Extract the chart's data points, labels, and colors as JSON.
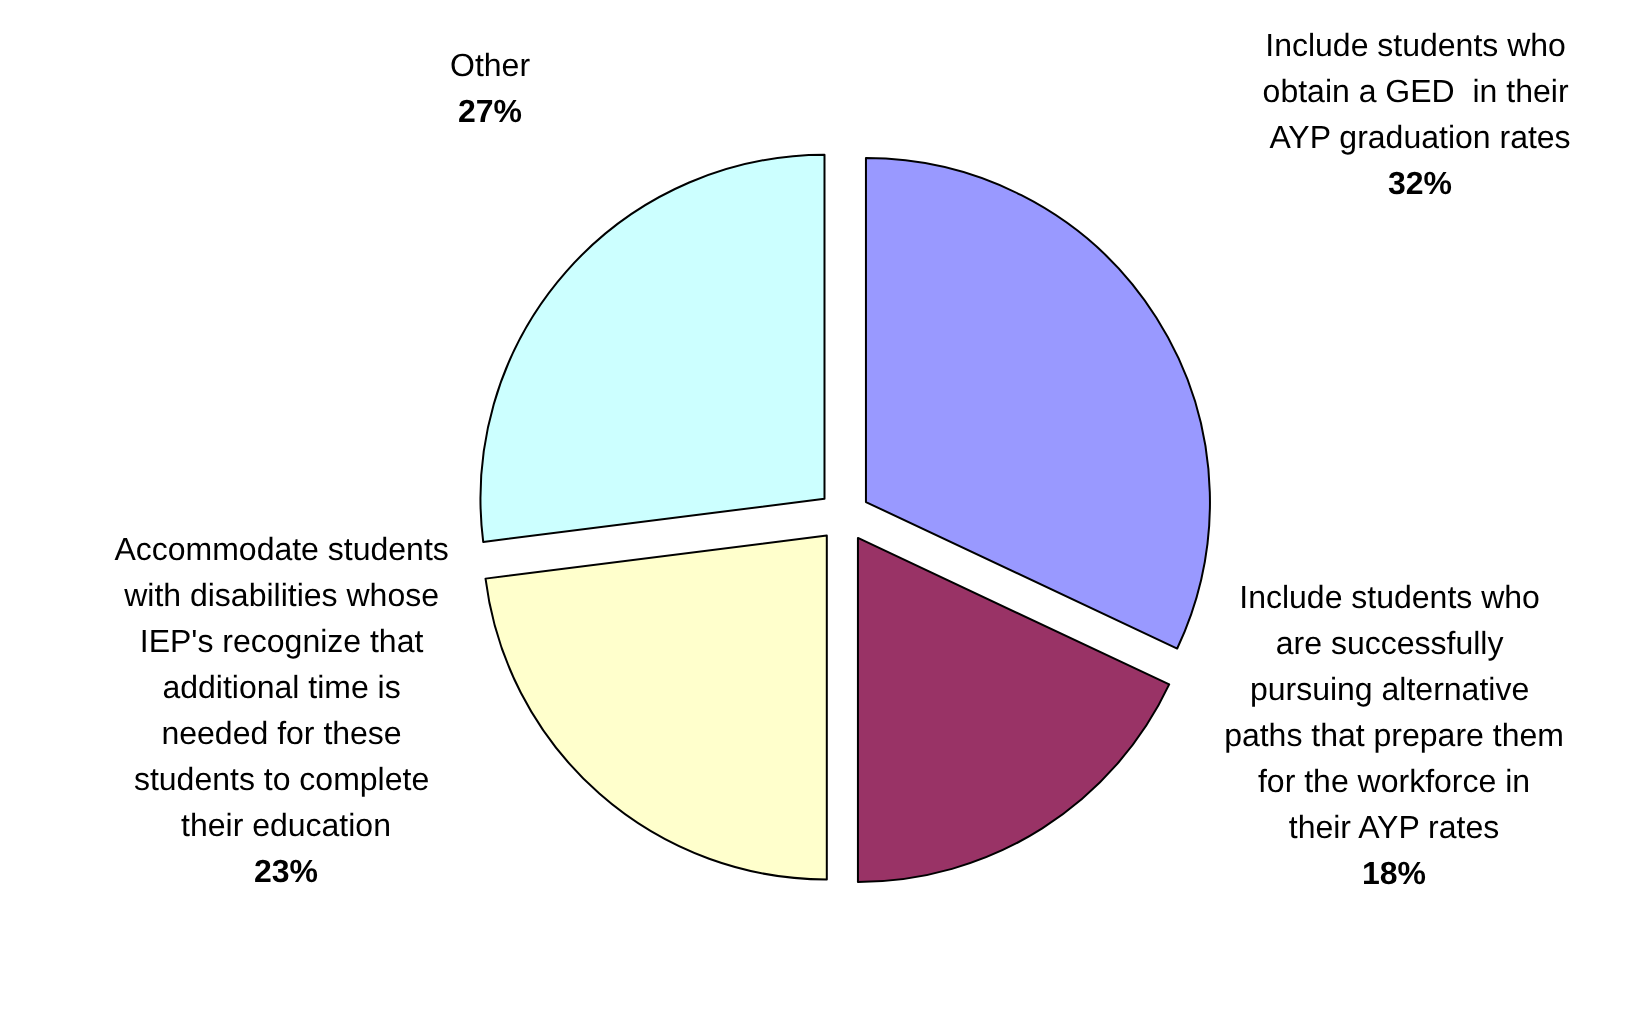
{
  "chart_data": {
    "type": "pie",
    "categories": [
      "Include students who obtain a GED  in their AYP graduation rates",
      "Include students who are successfully pursuing alternative paths that prepare them for the workforce in their AYP rates",
      "Accommodate students with disabilities whose IEP's recognize that additional time is needed for these students to complete their education",
      "Other"
    ],
    "values": [
      32,
      18,
      23,
      27
    ],
    "value_labels": [
      "32%",
      "18%",
      "23%",
      "27%"
    ],
    "colors": [
      "#9999ff",
      "#993366",
      "#ffffcc",
      "#ccffff"
    ]
  }
}
